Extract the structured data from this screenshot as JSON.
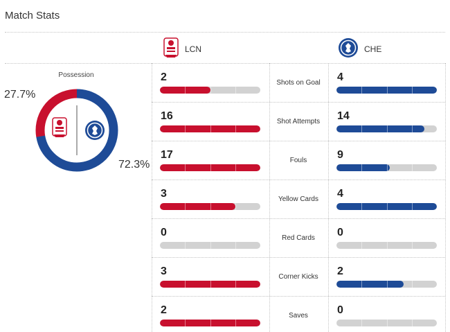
{
  "title": "Match Stats",
  "teams": {
    "home": {
      "abbr": "LCN",
      "color": "#c8102e",
      "possession_label": "27.7%",
      "possession": 27.7
    },
    "away": {
      "abbr": "CHE",
      "color": "#1e4b97",
      "possession_label": "72.3%",
      "possession": 72.3
    }
  },
  "possession_title": "Possession",
  "stats": [
    {
      "label": "Shots on Goal",
      "home": "2",
      "away": "4",
      "home_fill": 0.5,
      "away_fill": 1.0
    },
    {
      "label": "Shot Attempts",
      "home": "16",
      "away": "14",
      "home_fill": 1.0,
      "away_fill": 0.875
    },
    {
      "label": "Fouls",
      "home": "17",
      "away": "9",
      "home_fill": 1.0,
      "away_fill": 0.53
    },
    {
      "label": "Yellow Cards",
      "home": "3",
      "away": "4",
      "home_fill": 0.75,
      "away_fill": 1.0
    },
    {
      "label": "Red Cards",
      "home": "0",
      "away": "0",
      "home_fill": 0,
      "away_fill": 0
    },
    {
      "label": "Corner Kicks",
      "home": "3",
      "away": "2",
      "home_fill": 1.0,
      "away_fill": 0.667
    },
    {
      "label": "Saves",
      "home": "2",
      "away": "0",
      "home_fill": 1.0,
      "away_fill": 0
    }
  ]
}
